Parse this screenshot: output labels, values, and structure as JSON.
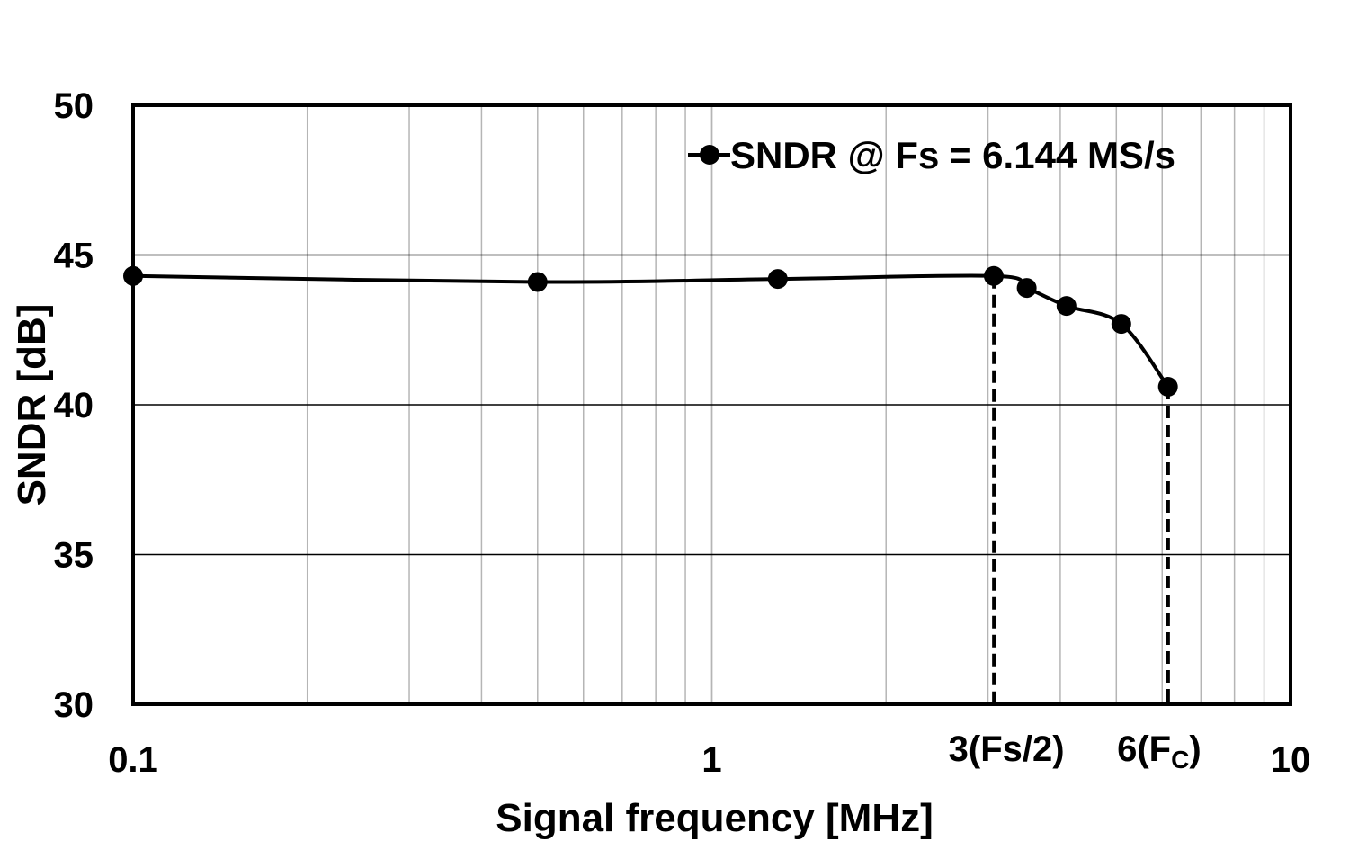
{
  "chart_data": {
    "type": "line",
    "xlabel": "Signal frequency [MHz]",
    "ylabel": "SNDR [dB]",
    "x_scale": "log",
    "xlim": [
      0.1,
      10
    ],
    "ylim": [
      30,
      50
    ],
    "yticks": [
      "30",
      "35",
      "40",
      "45",
      "50"
    ],
    "xticks": [
      {
        "x": 0.1,
        "label": "0.1"
      },
      {
        "x": 1,
        "label": "1"
      },
      {
        "x": 10,
        "label": "10"
      }
    ],
    "special_ticks": [
      {
        "x": 3.072,
        "label": "3(Fs/2)",
        "y": 44.3
      },
      {
        "x": 6.144,
        "label_main": "6(F",
        "label_sub": "C",
        "label_end": ")",
        "y": 40.6
      }
    ],
    "grid": true,
    "legend_position": "top-right",
    "series": [
      {
        "name": "SNDR @ Fs = 6.144 MS/s",
        "color": "#000000",
        "x": [
          0.1,
          0.5,
          1.3,
          3.07,
          3.5,
          4.1,
          5.1,
          6.14
        ],
        "y": [
          44.3,
          44.1,
          44.2,
          44.3,
          43.9,
          43.3,
          42.7,
          40.6
        ]
      }
    ]
  }
}
